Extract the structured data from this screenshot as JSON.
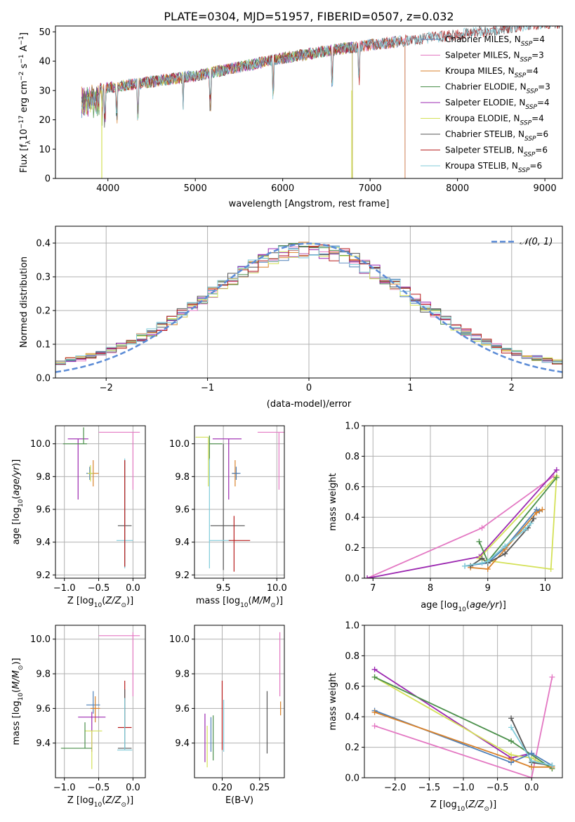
{
  "figure": {
    "title": "PLATE=0304, MJD=51957, FIBERID=0507, z=0.032"
  },
  "colors": {
    "Chabrier MILES": "#4c7fb8",
    "Salpeter MILES": "#e377c2",
    "Kroupa MILES": "#d9822b",
    "Chabrier ELODIE": "#4a8f4a",
    "Salpeter ELODIE": "#9b27b0",
    "Kroupa ELODIE": "#d4e157",
    "Chabrier STELIB": "#555555",
    "Salpeter STELIB": "#b71c1c",
    "Kroupa STELIB": "#80cbd9",
    "gaussian": "#5b8bd6"
  },
  "chart_data": [
    {
      "type": "line",
      "panel": "spectrum",
      "xlabel": "wavelength [Angstrom, rest frame]",
      "ylabel": "Flux [fλ10⁻¹⁷ erg cm⁻² s⁻¹ A⁻¹]",
      "xlim": [
        3400,
        9200
      ],
      "ylim": [
        0,
        52
      ],
      "xticks": [
        4000,
        5000,
        6000,
        7000,
        8000,
        9000
      ],
      "yticks": [
        0,
        10,
        20,
        30,
        40,
        50
      ],
      "grid": false,
      "legend_position": "right",
      "legend": [
        "Chabrier MILES, N_SSP=4",
        "Salpeter MILES, N_SSP=3",
        "Kroupa MILES, N_SSP=4",
        "Chabrier ELODIE, N_SSP=3",
        "Salpeter ELODIE, N_SSP=4",
        "Kroupa ELODIE, N_SSP=4",
        "Chabrier STELIB, N_SSP=6",
        "Salpeter STELIB, N_SSP=6",
        "Kroupa STELIB, N_SSP=6"
      ],
      "continuum": {
        "x": [
          3700,
          4000,
          4500,
          5000,
          5500,
          6000,
          6500,
          7000,
          7400,
          8000,
          8500,
          9000
        ],
        "y": [
          30,
          31,
          33,
          35,
          38,
          41,
          43.5,
          45.5,
          47,
          49,
          51,
          53
        ]
      },
      "series": [
        {
          "name": "Chabrier MILES",
          "xmax": 7400
        },
        {
          "name": "Salpeter MILES",
          "xmax": 7400
        },
        {
          "name": "Kroupa MILES",
          "xmax": 7400
        },
        {
          "name": "Chabrier ELODIE",
          "xmax": 6800
        },
        {
          "name": "Salpeter ELODIE",
          "xmax": 6800
        },
        {
          "name": "Kroupa ELODIE",
          "xmax": 6800
        },
        {
          "name": "Chabrier STELIB",
          "xmax": 9200
        },
        {
          "name": "Salpeter STELIB",
          "xmax": 9200
        },
        {
          "name": "Kroupa STELIB",
          "xmax": 9200
        }
      ]
    },
    {
      "type": "histogram",
      "panel": "residuals",
      "xlabel": "(data-model)/error",
      "ylabel": "Normed distribution",
      "xlim": [
        -2.5,
        2.5
      ],
      "ylim": [
        0,
        0.45
      ],
      "xticks": [
        -2,
        -1,
        0,
        1,
        2
      ],
      "yticks": [
        0.0,
        0.1,
        0.2,
        0.3,
        0.4
      ],
      "grid": true,
      "legend": [
        "𝒩(0, 1)"
      ],
      "legend_position": "top-right",
      "gaussian": {
        "mu": 0,
        "sigma": 1
      },
      "bin_width": 0.1
    },
    {
      "type": "errorbar",
      "panel": "age-vs-Z",
      "xlabel": "Z [log₁₀(Z/Z⊙)]",
      "ylabel": "age  [log₁₀(age/yr)]",
      "xlim": [
        -1.13,
        0.18
      ],
      "ylim": [
        9.18,
        10.11
      ],
      "xticks": [
        -1.0,
        -0.5,
        0.0
      ],
      "yticks": [
        9.2,
        9.4,
        9.6,
        9.8,
        10.0
      ],
      "grid": true,
      "points": [
        {
          "series": "Salpeter MILES",
          "x": 0.0,
          "xerr": [
            0.5,
            0.1
          ],
          "y": 10.07,
          "yerr": [
            0.35,
            0.0
          ]
        },
        {
          "series": "Salpeter ELODIE",
          "x": -0.8,
          "xerr": [
            0.15,
            0.15
          ],
          "y": 10.03,
          "yerr": [
            0.37,
            0.0
          ]
        },
        {
          "series": "Chabrier ELODIE",
          "x": -0.72,
          "xerr": [
            0.3,
            0.05
          ],
          "y": 10.0,
          "yerr": [
            0.0,
            0.1
          ]
        },
        {
          "series": "Kroupa MILES",
          "x": -0.58,
          "xerr": [
            0.08,
            0.08
          ],
          "y": 9.82,
          "yerr": [
            0.08,
            0.08
          ]
        },
        {
          "series": "Chabrier MILES",
          "x": -0.63,
          "xerr": [
            0.05,
            0.05
          ],
          "y": 9.82,
          "yerr": [
            0.04,
            0.04
          ]
        },
        {
          "series": "Kroupa ELODIE",
          "x": -0.62,
          "xerr": [
            0.04,
            0.04
          ],
          "y": 9.82,
          "yerr": [
            0.05,
            0.05
          ]
        },
        {
          "series": "Chabrier STELIB",
          "x": -0.12,
          "xerr": [
            0.1,
            0.1
          ],
          "y": 9.5,
          "yerr": [
            0.25,
            0.4
          ]
        },
        {
          "series": "Kroupa STELIB",
          "x": -0.12,
          "xerr": [
            0.12,
            0.12
          ],
          "y": 9.41,
          "yerr": [
            0.17,
            0.5
          ]
        },
        {
          "series": "Salpeter STELIB",
          "x": -0.12,
          "xerr": [
            0.0,
            0.0
          ],
          "y": 9.45,
          "yerr": [
            0.2,
            0.45
          ]
        }
      ]
    },
    {
      "type": "errorbar",
      "panel": "age-vs-mass",
      "xlabel": "mass [log₁₀(M/M⊙)]",
      "ylabel": "",
      "xlim": [
        9.23,
        10.07
      ],
      "ylim": [
        9.18,
        10.11
      ],
      "xticks": [
        9.5,
        10.0
      ],
      "yticks": [
        9.2,
        9.4,
        9.6,
        9.8,
        10.0
      ],
      "grid": true,
      "points": [
        {
          "series": "Salpeter MILES",
          "x": 10.02,
          "xerr": [
            0.2,
            0.05
          ],
          "y": 10.07,
          "yerr": [
            0.35,
            0.0
          ]
        },
        {
          "series": "Kroupa ELODIE",
          "x": 9.36,
          "xerr": [
            0.12,
            0.0
          ],
          "y": 10.04,
          "yerr": [
            0.3,
            0.0
          ]
        },
        {
          "series": "Salpeter ELODIE",
          "x": 9.55,
          "xerr": [
            0.15,
            0.12
          ],
          "y": 10.03,
          "yerr": [
            0.37,
            0.0
          ]
        },
        {
          "series": "Chabrier ELODIE",
          "x": 9.37,
          "xerr": [
            0.0,
            0.12
          ],
          "y": 10.0,
          "yerr": [
            0.1,
            0.05
          ]
        },
        {
          "series": "Kroupa MILES",
          "x": 9.61,
          "xerr": [
            0.03,
            0.03
          ],
          "y": 9.82,
          "yerr": [
            0.08,
            0.08
          ]
        },
        {
          "series": "Chabrier MILES",
          "x": 9.62,
          "xerr": [
            0.04,
            0.04
          ],
          "y": 9.82,
          "yerr": [
            0.04,
            0.04
          ]
        },
        {
          "series": "Chabrier STELIB",
          "x": 9.5,
          "xerr": [
            0.12,
            0.2
          ],
          "y": 9.5,
          "yerr": [
            0.27,
            0.5
          ]
        },
        {
          "series": "Kroupa STELIB",
          "x": 9.37,
          "xerr": [
            0.0,
            0.2
          ],
          "y": 9.41,
          "yerr": [
            0.17,
            0.5
          ]
        },
        {
          "series": "Salpeter STELIB",
          "x": 9.6,
          "xerr": [
            0.05,
            0.15
          ],
          "y": 9.41,
          "yerr": [
            0.19,
            0.15
          ]
        }
      ]
    },
    {
      "type": "line",
      "panel": "mass-weight-vs-age",
      "xlabel": "age  [log₁₀(age/yr)]",
      "ylabel": "mass weight",
      "xlim": [
        6.85,
        10.3
      ],
      "ylim": [
        0,
        1
      ],
      "xticks": [
        7,
        8,
        9,
        10
      ],
      "yticks": [
        0.0,
        0.2,
        0.4,
        0.6,
        0.8,
        1.0
      ],
      "grid": true,
      "series": [
        {
          "name": "Salpeter MILES",
          "x": [
            6.9,
            8.9,
            10.15
          ],
          "y": [
            0.0,
            0.33,
            0.67
          ]
        },
        {
          "name": "Salpeter ELODIE",
          "x": [
            6.9,
            8.85,
            10.2
          ],
          "y": [
            0.0,
            0.14,
            0.71
          ]
        },
        {
          "name": "Kroupa ELODIE",
          "x": [
            8.9,
            10.1,
            10.2,
            8.85
          ],
          "y": [
            0.12,
            0.06,
            0.67,
            0.13
          ]
        },
        {
          "name": "Chabrier ELODIE",
          "x": [
            8.85,
            9.0,
            10.2
          ],
          "y": [
            0.24,
            0.11,
            0.66
          ]
        },
        {
          "name": "Chabrier MILES",
          "x": [
            8.6,
            9.0,
            9.3,
            9.85,
            9.9
          ],
          "y": [
            0.08,
            0.1,
            0.2,
            0.45,
            0.44
          ]
        },
        {
          "name": "Kroupa MILES",
          "x": [
            8.7,
            9.0,
            9.3,
            9.85,
            9.95
          ],
          "y": [
            0.07,
            0.06,
            0.19,
            0.43,
            0.45
          ]
        },
        {
          "name": "Chabrier STELIB",
          "x": [
            8.7,
            8.9,
            9.0,
            9.3,
            9.7,
            9.8
          ],
          "y": [
            0.08,
            0.13,
            0.1,
            0.16,
            0.33,
            0.39
          ]
        },
        {
          "name": "Kroupa STELIB",
          "x": [
            8.6,
            8.9,
            9.0,
            9.3,
            9.65,
            9.75
          ],
          "y": [
            0.08,
            0.1,
            0.11,
            0.21,
            0.32,
            0.36
          ]
        }
      ]
    },
    {
      "type": "errorbar",
      "panel": "mass-vs-Z",
      "xlabel": "Z [log₁₀(Z/Z⊙)]",
      "ylabel": "mass [log₁₀(M/M⊙)]",
      "xlim": [
        -1.13,
        0.18
      ],
      "ylim": [
        9.2,
        10.08
      ],
      "xticks": [
        -1.0,
        -0.5,
        0.0
      ],
      "yticks": [
        9.4,
        9.6,
        9.8,
        10.0
      ],
      "grid": true,
      "points": [
        {
          "series": "Salpeter MILES",
          "x": 0.0,
          "xerr": [
            0.5,
            0.1
          ],
          "y": 10.02,
          "yerr": [
            0.35,
            0.02
          ]
        },
        {
          "series": "Chabrier MILES",
          "x": -0.58,
          "xerr": [
            0.1,
            0.1
          ],
          "y": 9.62,
          "yerr": [
            0.05,
            0.08
          ]
        },
        {
          "series": "Kroupa MILES",
          "x": -0.55,
          "xerr": [
            0.07,
            0.07
          ],
          "y": 9.6,
          "yerr": [
            0.08,
            0.07
          ]
        },
        {
          "series": "Salpeter ELODIE",
          "x": -0.6,
          "xerr": [
            0.2,
            0.2
          ],
          "y": 9.55,
          "yerr": [
            0.2,
            0.03
          ]
        },
        {
          "series": "Kroupa ELODIE",
          "x": -0.6,
          "xerr": [
            0.1,
            0.15
          ],
          "y": 9.47,
          "yerr": [
            0.22,
            0.0
          ]
        },
        {
          "series": "Salpeter STELIB",
          "x": -0.12,
          "xerr": [
            0.1,
            0.1
          ],
          "y": 9.49,
          "yerr": [
            0.0,
            0.27
          ]
        },
        {
          "series": "Chabrier ELODIE",
          "x": -0.7,
          "xerr": [
            0.35,
            0.1
          ],
          "y": 9.37,
          "yerr": [
            0.0,
            0.15
          ]
        },
        {
          "series": "Chabrier STELIB",
          "x": -0.12,
          "xerr": [
            0.1,
            0.1
          ],
          "y": 9.37,
          "yerr": [
            0.0,
            0.34
          ]
        },
        {
          "series": "Kroupa STELIB",
          "x": -0.12,
          "xerr": [
            0.11,
            0.11
          ],
          "y": 9.36,
          "yerr": [
            0.0,
            0.3
          ]
        }
      ]
    },
    {
      "type": "errorbar",
      "panel": "mass-vs-ebv",
      "xlabel": "E(B-V)",
      "ylabel": "",
      "xlim": [
        0.163,
        0.283
      ],
      "ylim": [
        9.2,
        10.08
      ],
      "xticks": [
        0.2,
        0.25
      ],
      "yticks": [
        9.4,
        9.6,
        9.8,
        10.0
      ],
      "grid": true,
      "points": [
        {
          "series": "Salpeter MILES",
          "x": 0.277,
          "xerr": [
            0,
            0
          ],
          "y": 10.02,
          "yerr": [
            0.35,
            0.02
          ]
        },
        {
          "series": "Kroupa MILES",
          "x": 0.278,
          "xerr": [
            0,
            0
          ],
          "y": 9.6,
          "yerr": [
            0.04,
            0.04
          ]
        },
        {
          "series": "Chabrier STELIB",
          "x": 0.26,
          "xerr": [
            0,
            0
          ],
          "y": 9.52,
          "yerr": [
            0.18,
            0.18
          ]
        },
        {
          "series": "Salpeter STELIB",
          "x": 0.2,
          "xerr": [
            0,
            0
          ],
          "y": 9.56,
          "yerr": [
            0.2,
            0.2
          ]
        },
        {
          "series": "Kroupa STELIB",
          "x": 0.202,
          "xerr": [
            0,
            0
          ],
          "y": 9.5,
          "yerr": [
            0.15,
            0.15
          ]
        },
        {
          "series": "Chabrier ELODIE",
          "x": 0.188,
          "xerr": [
            0,
            0
          ],
          "y": 9.43,
          "yerr": [
            0.13,
            0.13
          ]
        },
        {
          "series": "Kroupa ELODIE",
          "x": 0.18,
          "xerr": [
            0,
            0
          ],
          "y": 9.38,
          "yerr": [
            0.12,
            0.12
          ]
        },
        {
          "series": "Salpeter ELODIE",
          "x": 0.177,
          "xerr": [
            0,
            0
          ],
          "y": 9.43,
          "yerr": [
            0.14,
            0.14
          ]
        },
        {
          "series": "Chabrier MILES",
          "x": 0.185,
          "xerr": [
            0,
            0
          ],
          "y": 9.45,
          "yerr": [
            0.1,
            0.1
          ]
        }
      ]
    },
    {
      "type": "line",
      "panel": "mass-weight-vs-Z",
      "xlabel": "Z [log₁₀(Z/Z⊙)]",
      "ylabel": "mass weight",
      "xlim": [
        -2.45,
        0.45
      ],
      "ylim": [
        0,
        1
      ],
      "xticks": [
        -2.0,
        -1.5,
        -1.0,
        -0.5,
        0.0
      ],
      "yticks": [
        0.0,
        0.2,
        0.4,
        0.6,
        0.8,
        1.0
      ],
      "grid": true,
      "series": [
        {
          "name": "Salpeter MILES",
          "x": [
            -2.3,
            0.0,
            0.3
          ],
          "y": [
            0.34,
            0.0,
            0.66
          ]
        },
        {
          "name": "Salpeter ELODIE",
          "x": [
            -2.3,
            -0.3,
            0.0
          ],
          "y": [
            0.71,
            0.13,
            0.16
          ]
        },
        {
          "name": "Kroupa ELODIE",
          "x": [
            -2.3,
            -0.3,
            0.0,
            0.3
          ],
          "y": [
            0.66,
            0.15,
            0.13,
            0.06
          ]
        },
        {
          "name": "Chabrier ELODIE",
          "x": [
            -2.3,
            -0.3,
            0.3
          ],
          "y": [
            0.66,
            0.24,
            0.06
          ]
        },
        {
          "name": "Chabrier MILES",
          "x": [
            -2.3,
            -0.3,
            0.0,
            0.3
          ],
          "y": [
            0.44,
            0.1,
            0.16,
            0.08
          ]
        },
        {
          "name": "Kroupa MILES",
          "x": [
            -2.3,
            -0.3,
            0.0,
            0.3
          ],
          "y": [
            0.43,
            0.12,
            0.07,
            0.07
          ]
        },
        {
          "name": "Chabrier STELIB",
          "x": [
            -0.3,
            0.0,
            0.3
          ],
          "y": [
            0.39,
            0.1,
            0.08
          ]
        },
        {
          "name": "Kroupa STELIB",
          "x": [
            -0.3,
            0.0,
            0.3
          ],
          "y": [
            0.33,
            0.11,
            0.08
          ]
        }
      ]
    }
  ]
}
